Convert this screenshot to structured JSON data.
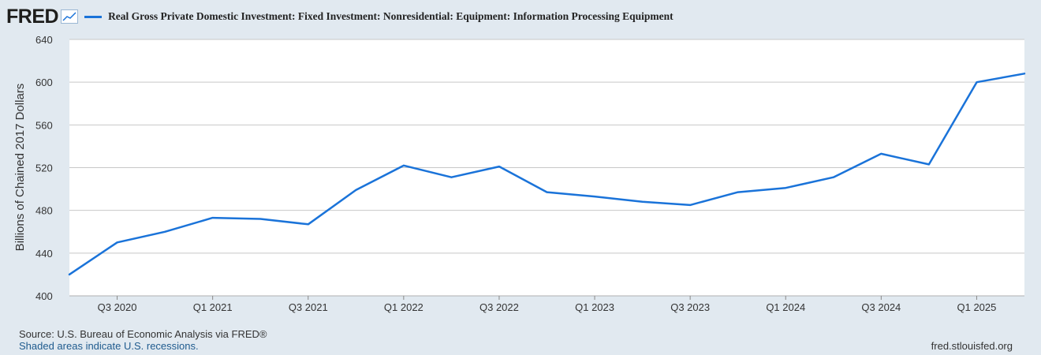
{
  "logo": {
    "text": "FRED",
    "icon": "line-graph-icon"
  },
  "legend": {
    "label": "Real Gross Private Domestic Investment: Fixed Investment: Nonresidential: Equipment: Information Processing Equipment",
    "color": "#1a73d9"
  },
  "footer": {
    "source": "Source: U.S. Bureau of Economic Analysis via FRED®",
    "note": "Shaded areas indicate U.S. recessions.",
    "url": "fred.stlouisfed.org"
  },
  "chart_data": {
    "type": "line",
    "title": "",
    "xlabel": "",
    "ylabel": "Billions of Chained 2017 Dollars",
    "ylim": [
      400,
      640
    ],
    "yticks": [
      400,
      440,
      480,
      520,
      560,
      600,
      640
    ],
    "grid": true,
    "xticks": [
      {
        "label": "Q3 2020",
        "x": "2020-Q3"
      },
      {
        "label": "Q1 2021",
        "x": "2021-Q1"
      },
      {
        "label": "Q3 2021",
        "x": "2021-Q3"
      },
      {
        "label": "Q1 2022",
        "x": "2022-Q1"
      },
      {
        "label": "Q3 2022",
        "x": "2022-Q3"
      },
      {
        "label": "Q1 2023",
        "x": "2023-Q1"
      },
      {
        "label": "Q3 2023",
        "x": "2023-Q3"
      },
      {
        "label": "Q1 2024",
        "x": "2024-Q1"
      },
      {
        "label": "Q3 2024",
        "x": "2024-Q3"
      },
      {
        "label": "Q1 2025",
        "x": "2025-Q1"
      }
    ],
    "series": [
      {
        "name": "Real Gross Private Domestic Investment: Fixed Investment: Nonresidential: Equipment: Information Processing Equipment",
        "color": "#1a73d9",
        "x": [
          "2020-Q2",
          "2020-Q3",
          "2020-Q4",
          "2021-Q1",
          "2021-Q2",
          "2021-Q3",
          "2021-Q4",
          "2022-Q1",
          "2022-Q2",
          "2022-Q3",
          "2022-Q4",
          "2023-Q1",
          "2023-Q2",
          "2023-Q3",
          "2023-Q4",
          "2024-Q1",
          "2024-Q2",
          "2024-Q3",
          "2024-Q4",
          "2025-Q1",
          "2025-Q2"
        ],
        "values": [
          420,
          450,
          460,
          473,
          472,
          467,
          499,
          522,
          511,
          521,
          497,
          493,
          488,
          485,
          497,
          501,
          511,
          533,
          523,
          600,
          608
        ]
      }
    ]
  }
}
